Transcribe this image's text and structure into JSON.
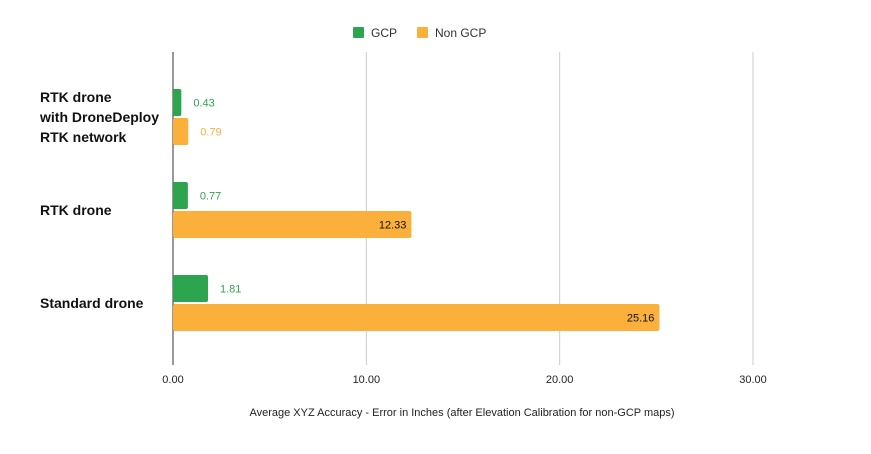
{
  "chart_data": {
    "type": "bar",
    "orientation": "horizontal",
    "categories": [
      [
        "RTK drone",
        "with DroneDeploy",
        "RTK network"
      ],
      [
        "RTK drone"
      ],
      [
        "Standard drone"
      ]
    ],
    "series": [
      {
        "name": "GCP",
        "color": "#2da44e",
        "values": [
          0.43,
          0.77,
          1.81
        ],
        "labels": [
          "0.43",
          "0.77",
          "1.81"
        ]
      },
      {
        "name": "Non GCP",
        "color": "#fbb03b",
        "values": [
          0.79,
          12.33,
          25.16
        ],
        "labels": [
          "0.79",
          "12.33",
          "25.16"
        ]
      }
    ],
    "xlim": [
      0,
      30
    ],
    "xticks": [
      0,
      10,
      20,
      30
    ],
    "xtick_labels": [
      "0.00",
      "10.00",
      "20.00",
      "30.00"
    ],
    "xlabel": "Average XYZ Accuracy - Error in Inches (after Elevation Calibration for non-GCP maps)",
    "grid": true,
    "legend_position": "top"
  }
}
